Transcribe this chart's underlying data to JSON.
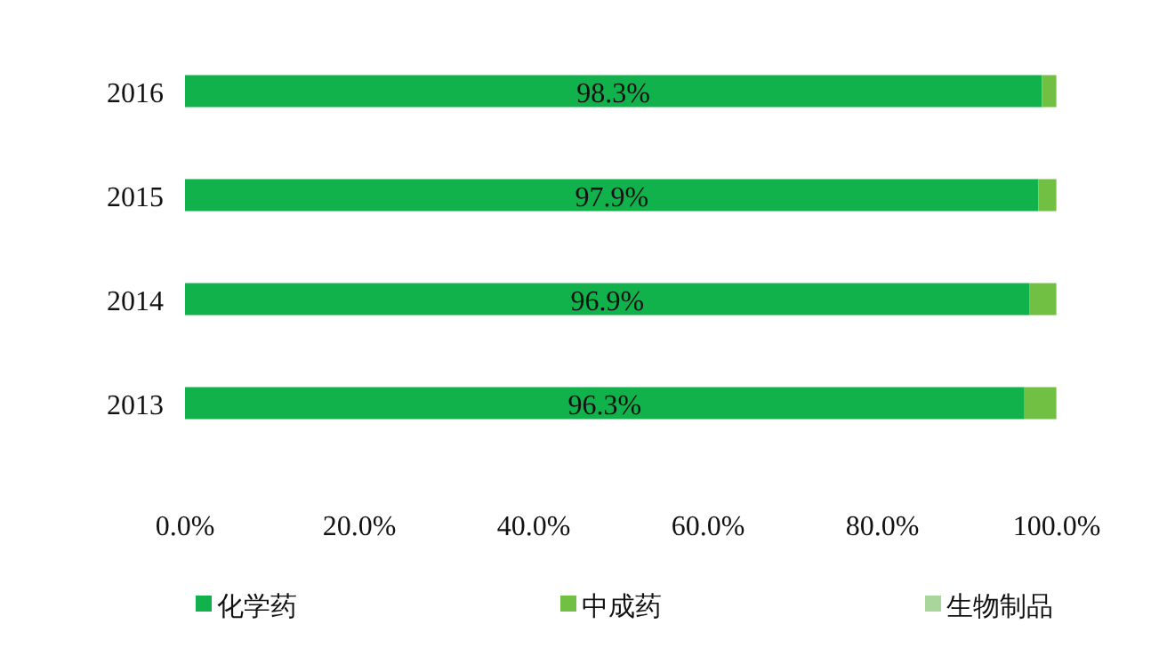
{
  "chart_data": {
    "type": "bar",
    "orientation": "horizontal",
    "stacked": true,
    "categories": [
      "2016",
      "2015",
      "2014",
      "2013"
    ],
    "series": [
      {
        "name": "化学药",
        "color": "#11b14b",
        "values": [
          98.3,
          97.9,
          96.9,
          96.3
        ],
        "value_labels": [
          "98.3%",
          "97.9%",
          "96.9%",
          "96.3%"
        ]
      },
      {
        "name": "中成药",
        "color": "#72c043",
        "values": [
          1.6,
          2.0,
          3.0,
          3.6
        ]
      },
      {
        "name": "生物制品",
        "color": "#a9d69a",
        "values": [
          0.1,
          0.1,
          0.1,
          0.1
        ]
      }
    ],
    "xlim": [
      0,
      100
    ],
    "xticks": [
      {
        "value": 0,
        "label": "0.0%"
      },
      {
        "value": 20,
        "label": "20.0%"
      },
      {
        "value": 40,
        "label": "40.0%"
      },
      {
        "value": 60,
        "label": "60.0%"
      },
      {
        "value": 80,
        "label": "80.0%"
      },
      {
        "value": 100,
        "label": "100.0%"
      }
    ],
    "legend": "bottom",
    "grid": false
  }
}
